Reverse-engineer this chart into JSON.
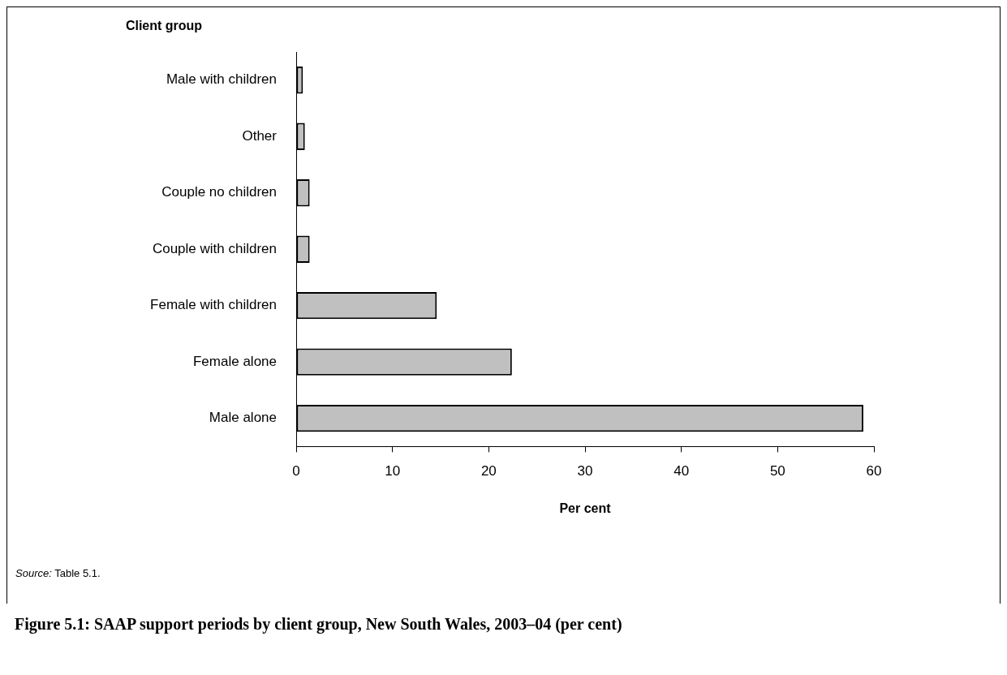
{
  "chart_data": {
    "type": "bar",
    "orientation": "horizontal",
    "title": "Figure 5.1: SAAP support periods by client group, New South Wales, 2003–04 (per cent)",
    "xlabel": "Per cent",
    "ylabel": "Client group",
    "categories": [
      "Male with children",
      "Other",
      "Couple no children",
      "Couple with children",
      "Female with children",
      "Female alone",
      "Male alone"
    ],
    "values": [
      0.7,
      0.9,
      1.4,
      1.4,
      14.6,
      22.4,
      58.9
    ],
    "color": "#c0c0c0",
    "xlim": [
      0,
      60
    ],
    "xticks": [
      0,
      10,
      20,
      30,
      40,
      50,
      60
    ],
    "grid": false,
    "annotations": [
      "Source: Table 5.1."
    ]
  }
}
